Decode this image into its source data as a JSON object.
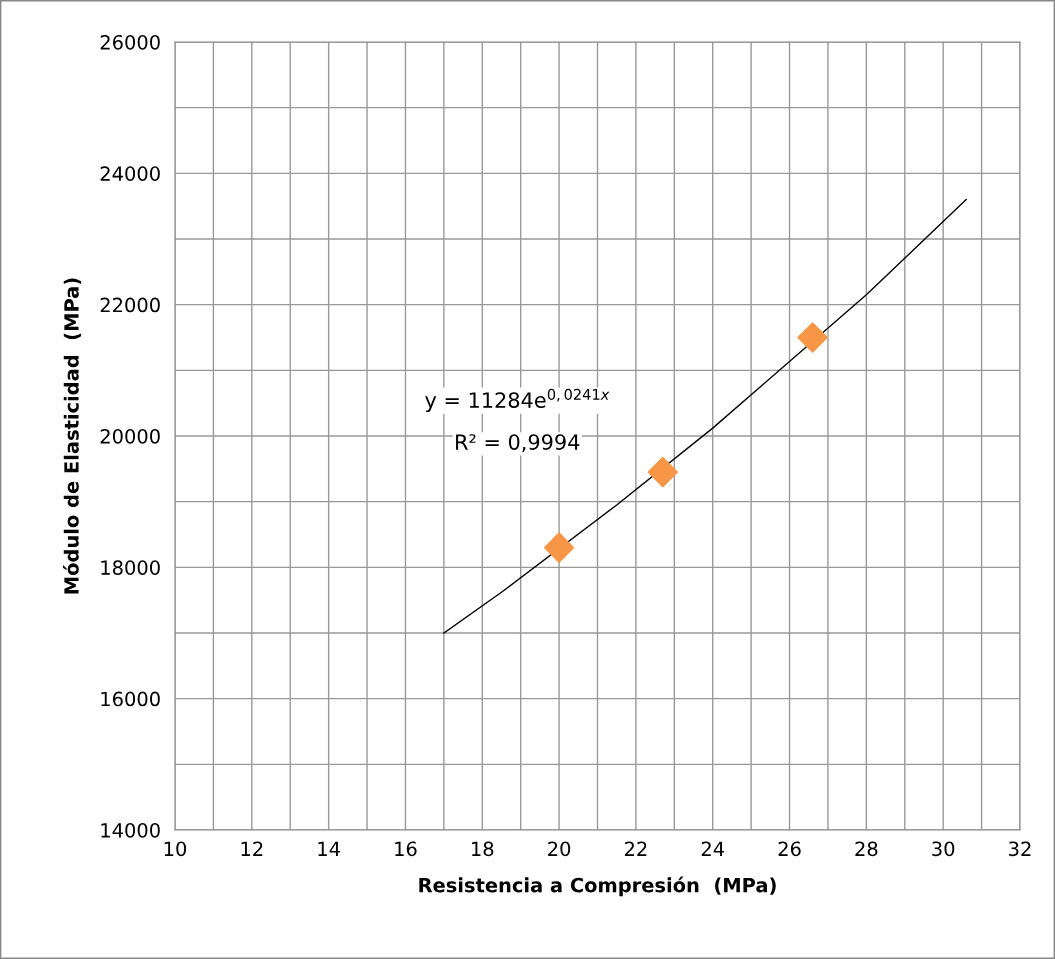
{
  "chart_data": {
    "type": "scatter",
    "xlabel": "Resistencia a Compresión  (MPa)",
    "ylabel": "Módulo de Elasticidad  (MPa)",
    "xlim": [
      10,
      32
    ],
    "ylim": [
      14000,
      26000
    ],
    "xticks": [
      10,
      {
        "value": 11,
        "label": null
      },
      12,
      {
        "value": 13,
        "label": null
      },
      14,
      {
        "value": 15,
        "label": null
      },
      16,
      {
        "value": 17,
        "label": null
      },
      18,
      {
        "value": 19,
        "label": null
      },
      20,
      {
        "value": 21,
        "label": null
      },
      22,
      {
        "value": 23,
        "label": null
      },
      24,
      {
        "value": 25,
        "label": null
      },
      26,
      {
        "value": 27,
        "label": null
      },
      28,
      {
        "value": 29,
        "label": null
      },
      30,
      {
        "value": 31,
        "label": null
      },
      32
    ],
    "yticks": [
      14000,
      {
        "value": 15000,
        "label": null
      },
      16000,
      {
        "value": 17000,
        "label": null
      },
      18000,
      {
        "value": 19000,
        "label": null
      },
      20000,
      {
        "value": 21000,
        "label": null
      },
      22000,
      {
        "value": 23000,
        "label": null
      },
      24000,
      {
        "value": 25000,
        "label": null
      },
      26000
    ],
    "grid": true,
    "series": [
      {
        "color": "#f79646",
        "marker": "diamond",
        "x": [
          20.0,
          22.7,
          26.6
        ],
        "values": [
          18300,
          19450,
          21500
        ]
      },
      {
        "type": "line",
        "color": "#000000",
        "marker": "none",
        "line_style": "solid",
        "x": [
          17,
          18.5,
          21.5,
          24,
          28,
          30.6
        ],
        "values": [
          17000,
          17620,
          18950,
          20120,
          22150,
          23600
        ]
      }
    ],
    "annotations": [
      "y = 11284e$^{0,0241x}$",
      "R² = 0,9994"
    ]
  }
}
